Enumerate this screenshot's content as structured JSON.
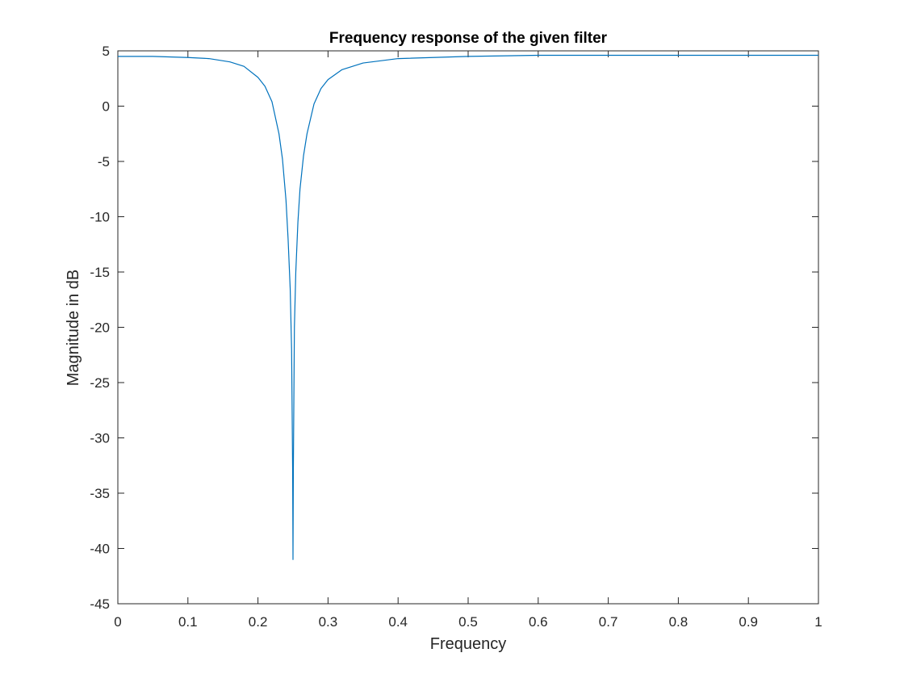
{
  "chart_data": {
    "type": "line",
    "title": "Frequency response of the given filter",
    "xlabel": "Frequency",
    "ylabel": "Magnitude in dB",
    "xlim": [
      0,
      1
    ],
    "ylim": [
      -45,
      5
    ],
    "xticks": [
      0,
      0.1,
      0.2,
      0.3,
      0.4,
      0.5,
      0.6,
      0.7,
      0.8,
      0.9,
      1
    ],
    "xtick_labels": [
      "0",
      "0.1",
      "0.2",
      "0.3",
      "0.4",
      "0.5",
      "0.6",
      "0.7",
      "0.8",
      "0.9",
      "1"
    ],
    "yticks": [
      5,
      0,
      -5,
      -10,
      -15,
      -20,
      -25,
      -30,
      -35,
      -40,
      -45
    ],
    "ytick_labels": [
      "5",
      "0",
      "-5",
      "-10",
      "-15",
      "-20",
      "-25",
      "-30",
      "-35",
      "-40",
      "-45"
    ],
    "grid": false,
    "line_color": "#0072BD",
    "series": [
      {
        "x": [
          0,
          0.05,
          0.1,
          0.13,
          0.16,
          0.18,
          0.2,
          0.21,
          0.22,
          0.23,
          0.235,
          0.24,
          0.243,
          0.246,
          0.248,
          0.2495,
          0.25,
          0.2505,
          0.252,
          0.254,
          0.257,
          0.26,
          0.265,
          0.27,
          0.28,
          0.29,
          0.3,
          0.32,
          0.35,
          0.4,
          0.5,
          0.6,
          0.7,
          0.8,
          0.9,
          1
        ],
        "y": [
          4.5,
          4.5,
          4.4,
          4.3,
          4.0,
          3.6,
          2.6,
          1.8,
          0.4,
          -2.5,
          -4.8,
          -8.5,
          -12.0,
          -16.5,
          -22.0,
          -33.0,
          -41.0,
          -33.0,
          -20.0,
          -15.0,
          -10.5,
          -7.5,
          -4.5,
          -2.5,
          0.2,
          1.6,
          2.4,
          3.3,
          3.9,
          4.3,
          4.5,
          4.6,
          4.6,
          4.6,
          4.6,
          4.6
        ]
      }
    ]
  }
}
